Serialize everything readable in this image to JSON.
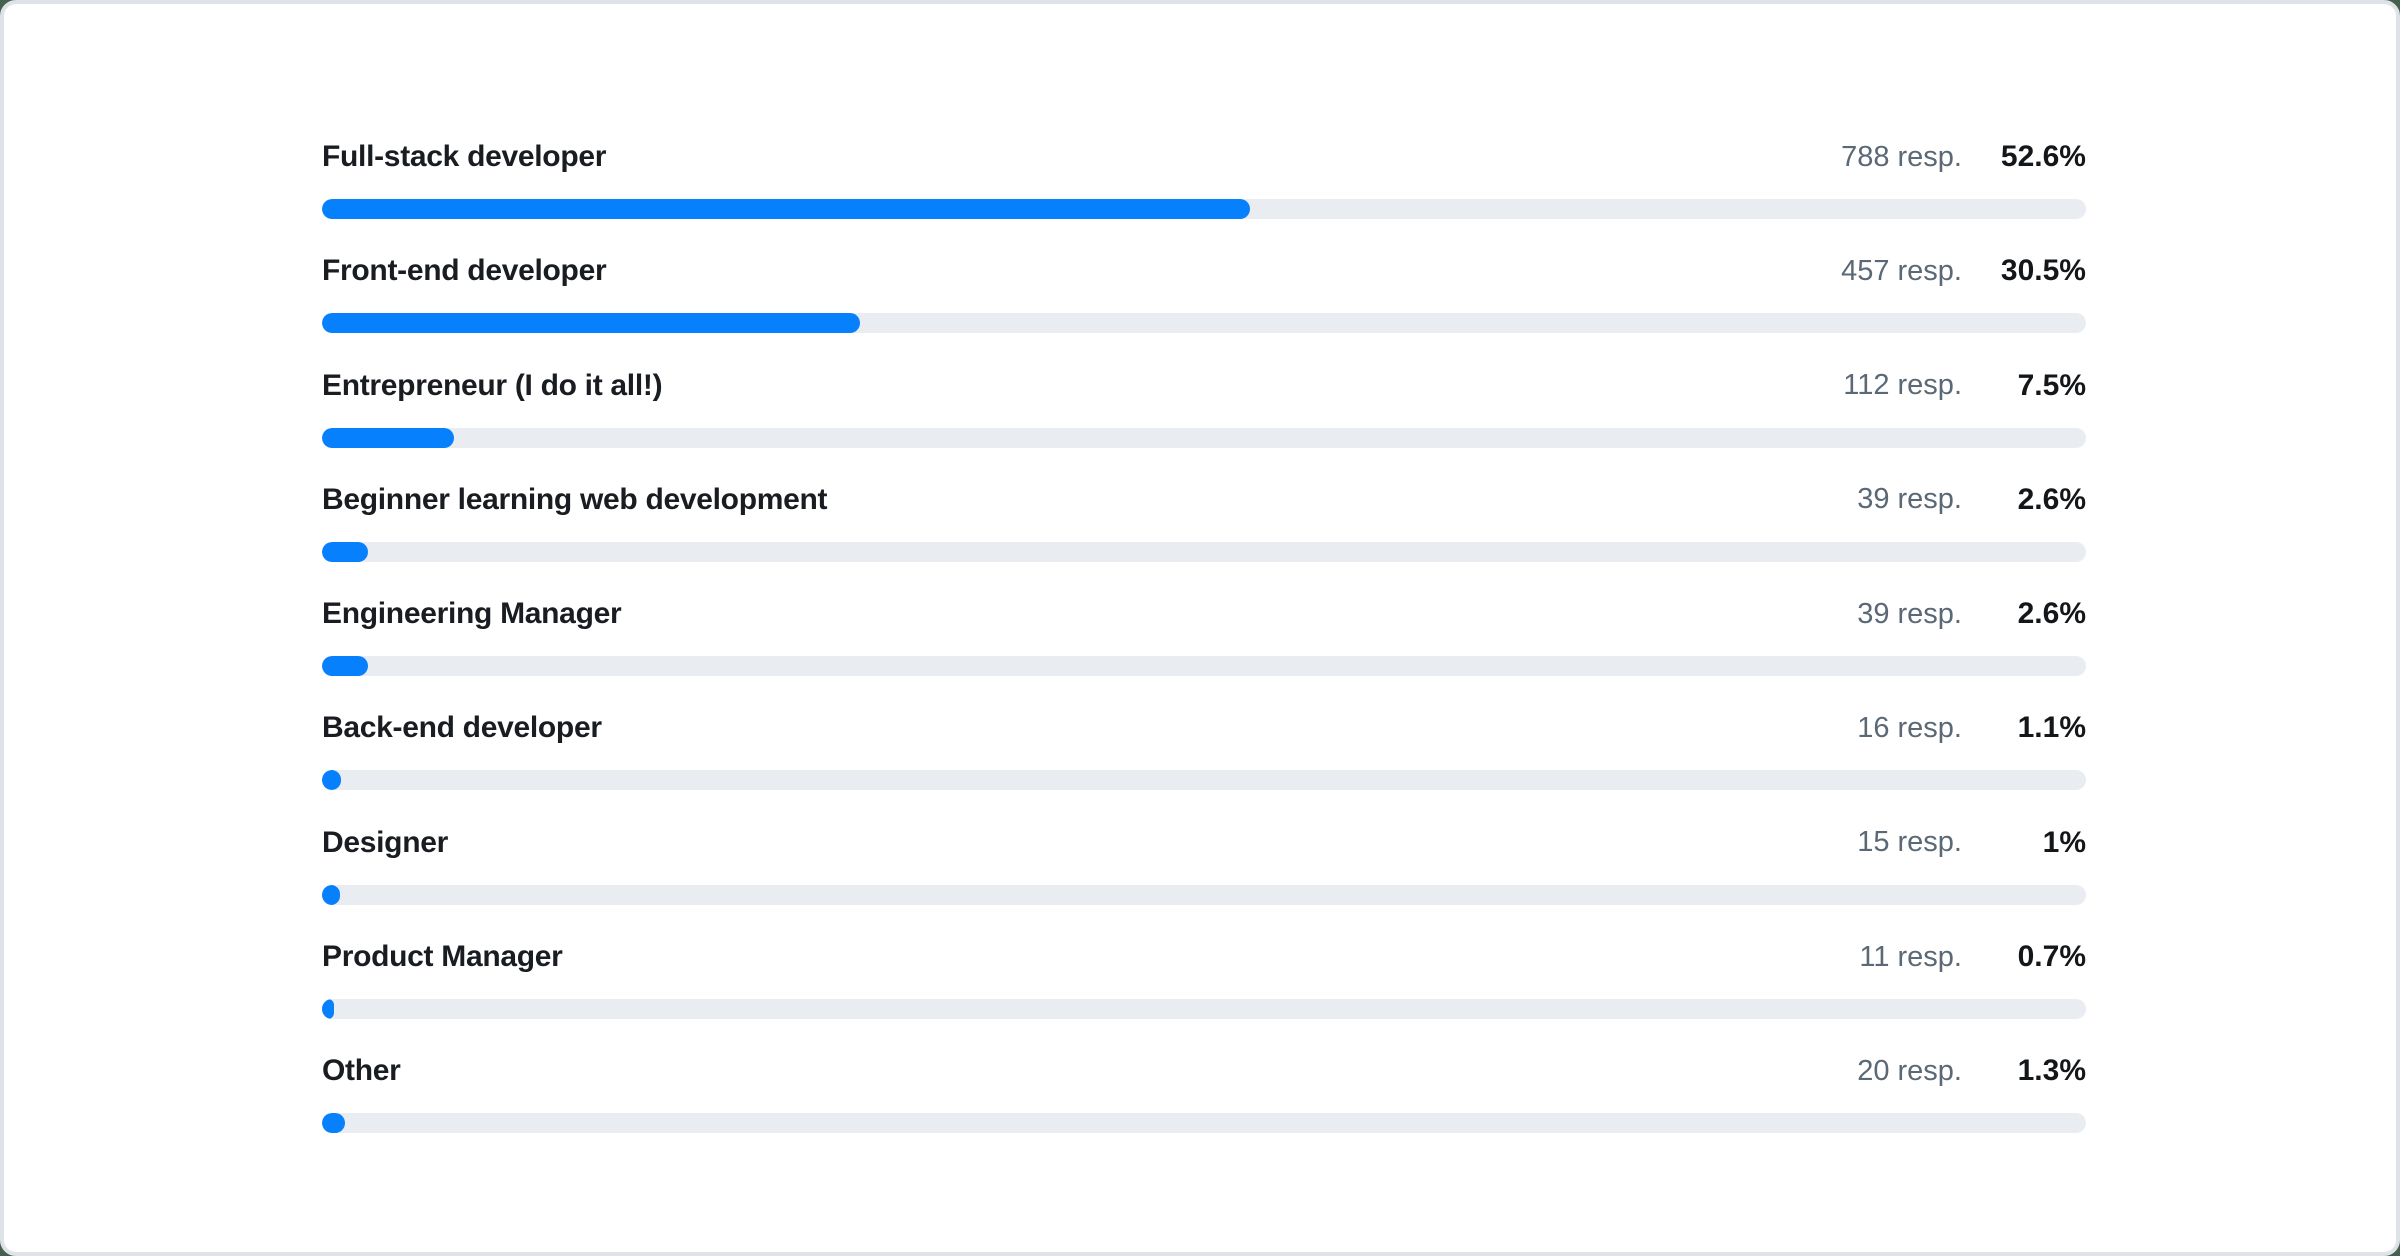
{
  "page": {
    "background_color": "#47604d",
    "card_background": "#ffffff",
    "card_border_color": "#dfe3e7"
  },
  "chart_data": {
    "type": "bar",
    "orientation": "horizontal",
    "title": "",
    "unit": "resp.",
    "axis_range_percent": [
      0,
      100
    ],
    "grid": false,
    "legend": false,
    "categories": [
      "Full-stack developer",
      "Front-end developer",
      "Entrepreneur (I do it all!)",
      "Beginner learning web development",
      "Engineering Manager",
      "Back-end developer",
      "Designer",
      "Product Manager",
      "Other"
    ],
    "series": [
      {
        "name": "responses",
        "values": [
          788,
          457,
          112,
          39,
          39,
          16,
          15,
          11,
          20
        ]
      },
      {
        "name": "percent",
        "values": [
          52.6,
          30.5,
          7.5,
          2.6,
          2.6,
          1.1,
          1,
          0.7,
          1.3
        ]
      }
    ],
    "rows": [
      {
        "label": "Full-stack developer",
        "responses": 788,
        "responses_label": "788 resp.",
        "percent": 52.6,
        "percent_label": "52.6%"
      },
      {
        "label": "Front-end developer",
        "responses": 457,
        "responses_label": "457 resp.",
        "percent": 30.5,
        "percent_label": "30.5%"
      },
      {
        "label": "Entrepreneur (I do it all!)",
        "responses": 112,
        "responses_label": "112 resp.",
        "percent": 7.5,
        "percent_label": "7.5%"
      },
      {
        "label": "Beginner learning web development",
        "responses": 39,
        "responses_label": "39 resp.",
        "percent": 2.6,
        "percent_label": "2.6%"
      },
      {
        "label": "Engineering Manager",
        "responses": 39,
        "responses_label": "39 resp.",
        "percent": 2.6,
        "percent_label": "2.6%"
      },
      {
        "label": "Back-end developer",
        "responses": 16,
        "responses_label": "16 resp.",
        "percent": 1.1,
        "percent_label": "1.1%"
      },
      {
        "label": "Designer",
        "responses": 15,
        "responses_label": "15 resp.",
        "percent": 1,
        "percent_label": "1%"
      },
      {
        "label": "Product Manager",
        "responses": 11,
        "responses_label": "11 resp.",
        "percent": 0.7,
        "percent_label": "0.7%"
      },
      {
        "label": "Other",
        "responses": 20,
        "responses_label": "20 resp.",
        "percent": 1.3,
        "percent_label": "1.3%"
      }
    ],
    "colors": {
      "bar_fill": "#0680fc",
      "bar_track": "#e9edf1",
      "label_text": "#191c20",
      "responses_text": "#5b6875",
      "percent_text": "#14171a"
    }
  }
}
